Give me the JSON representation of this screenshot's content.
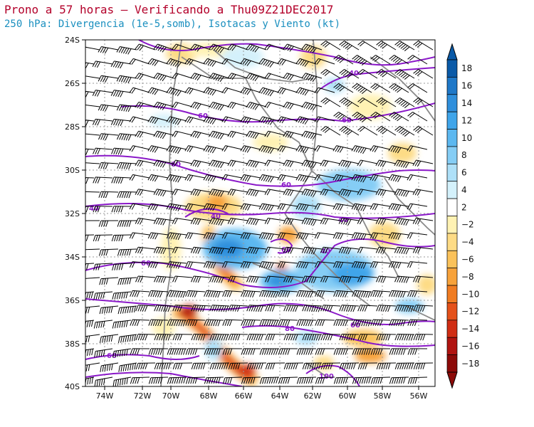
{
  "title": "Prono a 57 horas — Verificando a Thu09Z21DEC2017",
  "subtitle": "250 hPa: Divergencia (1e-5,somb), Isotacas y Viento (kt)",
  "lat_labels": [
    "24S",
    "26S",
    "28S",
    "30S",
    "32S",
    "34S",
    "36S",
    "38S",
    "40S"
  ],
  "lon_labels": [
    "74W",
    "72W",
    "70W",
    "68W",
    "66W",
    "64W",
    "62W",
    "60W",
    "58W",
    "56W"
  ],
  "colorbar": {
    "labels": [
      "18",
      "16",
      "14",
      "12",
      "10",
      "8",
      "6",
      "4",
      "2",
      "−2",
      "−4",
      "−6",
      "−8",
      "−10",
      "−12",
      "−14",
      "−16",
      "−18"
    ],
    "colors": [
      "#0a5aa8",
      "#1f78c8",
      "#2f8fdc",
      "#3fa5ea",
      "#5cb8f0",
      "#85cdf5",
      "#aee0f8",
      "#d4f1fb",
      "#ffffff",
      "#fff2b3",
      "#fddb85",
      "#fbc25a",
      "#f7a23a",
      "#f07c22",
      "#e4511a",
      "#d02d14",
      "#b01410",
      "#8c0a08"
    ]
  },
  "isotach_labels": [
    "40",
    "60",
    "60",
    "60",
    "60",
    "40",
    "40",
    "40",
    "40",
    "60",
    "60",
    "80",
    "60",
    "60",
    "100"
  ],
  "colors": {
    "title": "#b3002a",
    "subtitle": "#1a8fbf",
    "isotach": "#8a18c8",
    "border": "#8a8a8a",
    "barb": "#000000"
  }
}
